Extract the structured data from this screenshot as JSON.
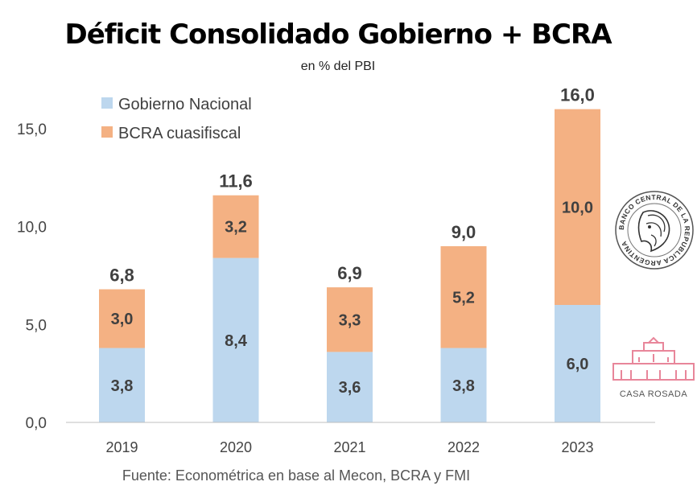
{
  "chart_data": {
    "type": "bar",
    "stacked": true,
    "title": "Déficit Consolidado Gobierno + BCRA",
    "subtitle": "en % del PBI",
    "categories": [
      "2019",
      "2020",
      "2021",
      "2022",
      "2023"
    ],
    "series": [
      {
        "name": "Gobierno Nacional",
        "color": "#bdd7ee",
        "values": [
          3.8,
          8.4,
          3.6,
          3.8,
          6.0
        ],
        "labels": [
          "3,8",
          "8,4",
          "3,6",
          "3,8",
          "6,0"
        ]
      },
      {
        "name": "BCRA cuasifiscal",
        "color": "#f4b183",
        "values": [
          3.0,
          3.2,
          3.3,
          5.2,
          10.0
        ],
        "labels": [
          "3,0",
          "3,2",
          "3,3",
          "5,2",
          "10,0"
        ]
      }
    ],
    "totals": [
      6.8,
      11.6,
      6.9,
      9.0,
      16.0
    ],
    "total_labels": [
      "6,8",
      "11,6",
      "6,9",
      "9,0",
      "16,0"
    ],
    "ylim": [
      0,
      16
    ],
    "yticks": [
      0,
      5,
      10,
      15
    ],
    "ytick_labels": [
      "0,0",
      "5,0",
      "10,0",
      "15,0"
    ],
    "grid": false,
    "legend_position": "top-left",
    "source": "Fuente: Econométrica en base al Mecon, BCRA y FMI"
  },
  "logos": {
    "bcra_seal": {
      "icon": "bcra-seal",
      "text": "BANCO CENTRAL DE LA REPUBLICA ARGENTINA"
    },
    "casa_rosada": {
      "icon": "casa-rosada-building",
      "text": "CASA ROSADA",
      "color": "#e8869a"
    }
  }
}
